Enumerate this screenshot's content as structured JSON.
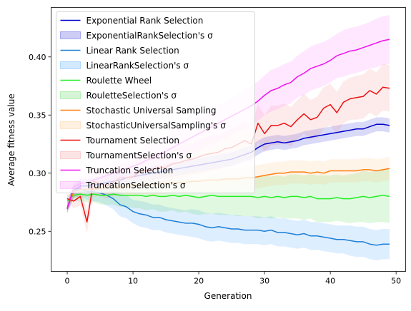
{
  "chart_data": {
    "type": "line",
    "title": "",
    "xlabel": "Generation",
    "ylabel": "Average fitness value",
    "xlim": [
      -2.45,
      51.45
    ],
    "ylim": [
      0.2155,
      0.4425
    ],
    "xticks": [
      0,
      10,
      20,
      30,
      40,
      50
    ],
    "yticks": [
      0.25,
      0.3,
      0.35,
      0.4
    ],
    "ytick_labels": [
      "0.25",
      "0.30",
      "0.35",
      "0.40"
    ],
    "grid": false,
    "legend_position": "upper-left",
    "series": [
      {
        "name": "Exponential Rank Selection",
        "band_label": "ExponentialRankSelection's σ",
        "color": "#0000cd",
        "band_color": "#0000cd",
        "x": [
          0,
          1,
          2,
          3,
          4,
          5,
          6,
          7,
          8,
          9,
          10,
          11,
          12,
          13,
          14,
          15,
          16,
          17,
          18,
          19,
          20,
          21,
          22,
          23,
          24,
          25,
          26,
          27,
          28,
          29,
          30,
          31,
          32,
          33,
          34,
          35,
          36,
          37,
          38,
          39,
          40,
          41,
          42,
          43,
          44,
          45,
          46,
          47,
          48,
          49
        ],
        "values": [
          0.27,
          0.285,
          0.289,
          0.289,
          0.29,
          0.291,
          0.292,
          0.293,
          0.294,
          0.296,
          0.297,
          0.298,
          0.299,
          0.3,
          0.301,
          0.302,
          0.303,
          0.304,
          0.305,
          0.306,
          0.307,
          0.308,
          0.309,
          0.31,
          0.311,
          0.312,
          0.314,
          0.316,
          0.318,
          0.322,
          0.325,
          0.326,
          0.327,
          0.326,
          0.327,
          0.328,
          0.33,
          0.331,
          0.332,
          0.333,
          0.334,
          0.335,
          0.336,
          0.337,
          0.338,
          0.338,
          0.34,
          0.342,
          0.342,
          0.341
        ],
        "sigma": [
          0.004,
          0.006,
          0.006,
          0.006,
          0.006,
          0.006,
          0.006,
          0.006,
          0.006,
          0.006,
          0.006,
          0.006,
          0.006,
          0.006,
          0.006,
          0.006,
          0.006,
          0.006,
          0.006,
          0.006,
          0.006,
          0.006,
          0.006,
          0.006,
          0.006,
          0.006,
          0.006,
          0.006,
          0.006,
          0.006,
          0.006,
          0.006,
          0.006,
          0.006,
          0.006,
          0.006,
          0.006,
          0.006,
          0.006,
          0.006,
          0.006,
          0.006,
          0.006,
          0.006,
          0.006,
          0.006,
          0.006,
          0.006,
          0.006,
          0.006
        ]
      },
      {
        "name": "Linear Rank Selection",
        "band_label": "LinearRankSelection's σ",
        "color": "#1e7fd6",
        "band_color": "#1e90ff",
        "x": [
          0,
          1,
          2,
          3,
          4,
          5,
          6,
          7,
          8,
          9,
          10,
          11,
          12,
          13,
          14,
          15,
          16,
          17,
          18,
          19,
          20,
          21,
          22,
          23,
          24,
          25,
          26,
          27,
          28,
          29,
          30,
          31,
          32,
          33,
          34,
          35,
          36,
          37,
          38,
          39,
          40,
          41,
          42,
          43,
          44,
          45,
          46,
          47,
          48,
          49
        ],
        "values": [
          0.27,
          0.285,
          0.287,
          0.284,
          0.284,
          0.283,
          0.281,
          0.278,
          0.273,
          0.271,
          0.267,
          0.265,
          0.264,
          0.262,
          0.262,
          0.26,
          0.259,
          0.258,
          0.257,
          0.257,
          0.256,
          0.254,
          0.253,
          0.254,
          0.253,
          0.252,
          0.252,
          0.251,
          0.251,
          0.251,
          0.25,
          0.251,
          0.249,
          0.249,
          0.248,
          0.247,
          0.248,
          0.246,
          0.246,
          0.245,
          0.244,
          0.243,
          0.243,
          0.242,
          0.241,
          0.241,
          0.239,
          0.238,
          0.239,
          0.239
        ],
        "sigma": [
          0.004,
          0.006,
          0.007,
          0.007,
          0.008,
          0.008,
          0.009,
          0.009,
          0.01,
          0.01,
          0.01,
          0.011,
          0.011,
          0.011,
          0.011,
          0.011,
          0.011,
          0.011,
          0.011,
          0.012,
          0.012,
          0.012,
          0.012,
          0.012,
          0.012,
          0.012,
          0.012,
          0.012,
          0.012,
          0.012,
          0.012,
          0.012,
          0.012,
          0.012,
          0.012,
          0.012,
          0.012,
          0.012,
          0.012,
          0.012,
          0.012,
          0.012,
          0.012,
          0.013,
          0.013,
          0.013,
          0.013,
          0.013,
          0.013,
          0.013
        ]
      },
      {
        "name": "Roulette Wheel",
        "band_label": "RouletteSelection's σ",
        "color": "#22ee22",
        "band_color": "#32cd32",
        "x": [
          0,
          1,
          2,
          3,
          4,
          5,
          6,
          7,
          8,
          9,
          10,
          11,
          12,
          13,
          14,
          15,
          16,
          17,
          18,
          19,
          20,
          21,
          22,
          23,
          24,
          25,
          26,
          27,
          28,
          29,
          30,
          31,
          32,
          33,
          34,
          35,
          36,
          37,
          38,
          39,
          40,
          41,
          42,
          43,
          44,
          45,
          46,
          47,
          48,
          49
        ],
        "values": [
          0.276,
          0.281,
          0.282,
          0.281,
          0.282,
          0.281,
          0.281,
          0.282,
          0.281,
          0.281,
          0.281,
          0.281,
          0.28,
          0.281,
          0.28,
          0.28,
          0.281,
          0.28,
          0.281,
          0.28,
          0.279,
          0.28,
          0.281,
          0.28,
          0.28,
          0.28,
          0.28,
          0.28,
          0.28,
          0.279,
          0.28,
          0.279,
          0.28,
          0.279,
          0.28,
          0.28,
          0.279,
          0.28,
          0.278,
          0.278,
          0.278,
          0.279,
          0.278,
          0.278,
          0.279,
          0.28,
          0.279,
          0.28,
          0.281,
          0.28
        ],
        "sigma": [
          0.004,
          0.005,
          0.006,
          0.006,
          0.007,
          0.008,
          0.008,
          0.009,
          0.01,
          0.01,
          0.011,
          0.011,
          0.012,
          0.012,
          0.013,
          0.013,
          0.013,
          0.014,
          0.014,
          0.015,
          0.015,
          0.015,
          0.016,
          0.016,
          0.016,
          0.016,
          0.017,
          0.017,
          0.017,
          0.018,
          0.018,
          0.018,
          0.018,
          0.018,
          0.019,
          0.019,
          0.019,
          0.019,
          0.02,
          0.02,
          0.02,
          0.02,
          0.02,
          0.021,
          0.021,
          0.022,
          0.022,
          0.022,
          0.023,
          0.023
        ]
      },
      {
        "name": "Stochastic Universal Sampling",
        "band_label": "StochasticUniversalSampling's σ",
        "color": "#ff7f0e",
        "band_color": "#ffb366",
        "x": [
          0,
          1,
          2,
          3,
          4,
          5,
          6,
          7,
          8,
          9,
          10,
          11,
          12,
          13,
          14,
          15,
          16,
          17,
          18,
          19,
          20,
          21,
          22,
          23,
          24,
          25,
          26,
          27,
          28,
          29,
          30,
          31,
          32,
          33,
          34,
          35,
          36,
          37,
          38,
          39,
          40,
          41,
          42,
          43,
          44,
          45,
          46,
          47,
          48,
          49
        ],
        "values": [
          0.27,
          0.284,
          0.286,
          0.286,
          0.286,
          0.287,
          0.287,
          0.288,
          0.288,
          0.289,
          0.289,
          0.29,
          0.29,
          0.29,
          0.291,
          0.291,
          0.292,
          0.292,
          0.292,
          0.293,
          0.293,
          0.294,
          0.294,
          0.294,
          0.295,
          0.295,
          0.295,
          0.296,
          0.296,
          0.297,
          0.298,
          0.299,
          0.3,
          0.3,
          0.301,
          0.301,
          0.301,
          0.3,
          0.301,
          0.3,
          0.302,
          0.302,
          0.302,
          0.302,
          0.302,
          0.303,
          0.303,
          0.302,
          0.303,
          0.304
        ],
        "sigma": [
          0.004,
          0.005,
          0.006,
          0.006,
          0.006,
          0.007,
          0.007,
          0.007,
          0.008,
          0.008,
          0.008,
          0.008,
          0.008,
          0.009,
          0.009,
          0.009,
          0.009,
          0.009,
          0.009,
          0.009,
          0.009,
          0.009,
          0.01,
          0.01,
          0.01,
          0.01,
          0.01,
          0.01,
          0.01,
          0.01,
          0.01,
          0.01,
          0.01,
          0.01,
          0.01,
          0.01,
          0.01,
          0.01,
          0.01,
          0.01,
          0.01,
          0.01,
          0.01,
          0.01,
          0.01,
          0.01,
          0.01,
          0.01,
          0.01,
          0.01
        ]
      },
      {
        "name": "Tournament Selection",
        "band_label": "TournamentSelection's σ",
        "color": "#ee1111",
        "band_color": "#f47a7a",
        "x": [
          0,
          1,
          2,
          3,
          4,
          5,
          6,
          7,
          8,
          9,
          10,
          11,
          12,
          13,
          14,
          15,
          16,
          17,
          18,
          19,
          20,
          21,
          22,
          23,
          24,
          25,
          26,
          27,
          28,
          29,
          30,
          31,
          32,
          33,
          34,
          35,
          36,
          37,
          38,
          39,
          40,
          41,
          42,
          43,
          44,
          45,
          46,
          47,
          48,
          49
        ],
        "values": [
          0.278,
          0.276,
          0.28,
          0.258,
          0.293,
          0.291,
          0.289,
          0.292,
          0.296,
          0.296,
          0.297,
          0.301,
          0.302,
          0.304,
          0.305,
          0.305,
          0.308,
          0.309,
          0.311,
          0.312,
          0.314,
          0.316,
          0.317,
          0.318,
          0.321,
          0.322,
          0.325,
          0.328,
          0.325,
          0.343,
          0.334,
          0.341,
          0.341,
          0.343,
          0.34,
          0.346,
          0.351,
          0.346,
          0.348,
          0.356,
          0.359,
          0.352,
          0.361,
          0.364,
          0.365,
          0.366,
          0.371,
          0.368,
          0.374,
          0.373
        ],
        "sigma": [
          0.004,
          0.006,
          0.008,
          0.01,
          0.01,
          0.011,
          0.011,
          0.012,
          0.012,
          0.012,
          0.012,
          0.013,
          0.013,
          0.013,
          0.013,
          0.014,
          0.014,
          0.014,
          0.014,
          0.014,
          0.015,
          0.015,
          0.015,
          0.015,
          0.015,
          0.016,
          0.016,
          0.016,
          0.016,
          0.016,
          0.016,
          0.017,
          0.017,
          0.017,
          0.017,
          0.017,
          0.017,
          0.017,
          0.018,
          0.018,
          0.018,
          0.018,
          0.018,
          0.018,
          0.019,
          0.019,
          0.019,
          0.019,
          0.02,
          0.02
        ]
      },
      {
        "name": "Truncation Selection",
        "band_label": "TruncationSelection's σ",
        "color": "#ee11ee",
        "band_color": "#ff66ff",
        "x": [
          0,
          1,
          2,
          3,
          4,
          5,
          6,
          7,
          8,
          9,
          10,
          11,
          12,
          13,
          14,
          15,
          16,
          17,
          18,
          19,
          20,
          21,
          22,
          23,
          24,
          25,
          26,
          27,
          28,
          29,
          30,
          31,
          32,
          33,
          34,
          35,
          36,
          37,
          38,
          39,
          40,
          41,
          42,
          43,
          44,
          45,
          46,
          47,
          48,
          49
        ],
        "values": [
          0.269,
          0.288,
          0.291,
          0.292,
          0.294,
          0.296,
          0.298,
          0.3,
          0.302,
          0.304,
          0.306,
          0.308,
          0.311,
          0.313,
          0.316,
          0.319,
          0.322,
          0.325,
          0.328,
          0.331,
          0.334,
          0.337,
          0.34,
          0.343,
          0.346,
          0.349,
          0.352,
          0.355,
          0.358,
          0.362,
          0.367,
          0.371,
          0.373,
          0.376,
          0.378,
          0.383,
          0.386,
          0.39,
          0.392,
          0.394,
          0.397,
          0.401,
          0.403,
          0.405,
          0.406,
          0.408,
          0.41,
          0.412,
          0.414,
          0.415
        ],
        "sigma": [
          0.004,
          0.006,
          0.007,
          0.008,
          0.008,
          0.009,
          0.009,
          0.01,
          0.01,
          0.011,
          0.011,
          0.012,
          0.012,
          0.012,
          0.013,
          0.013,
          0.013,
          0.014,
          0.014,
          0.014,
          0.015,
          0.015,
          0.015,
          0.016,
          0.016,
          0.016,
          0.016,
          0.017,
          0.017,
          0.017,
          0.017,
          0.018,
          0.018,
          0.018,
          0.018,
          0.018,
          0.019,
          0.019,
          0.019,
          0.019,
          0.019,
          0.019,
          0.02,
          0.02,
          0.02,
          0.02,
          0.02,
          0.021,
          0.021,
          0.021
        ]
      }
    ]
  }
}
